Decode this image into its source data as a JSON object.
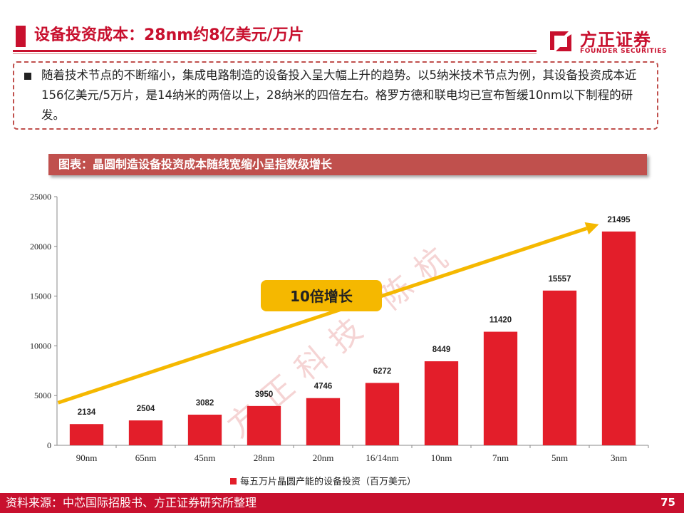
{
  "header": {
    "title": "设备投资成本：28nm约8亿美元/万片",
    "logo_cn": "方正证券",
    "logo_en": "FOUNDER SECURITIES"
  },
  "note": {
    "text": "随着技术节点的不断缩小，集成电路制造的设备投入呈大幅上升的趋势。以5纳米技术节点为例，其设备投资成本近156亿美元/5万片，是14纳米的两倍以上，28纳米的四倍左右。格罗方德和联电均已宣布暂缓10nm以下制程的研发。"
  },
  "chart_caption": "图表：晶圆制造设备投资成本随线宽缩小呈指数级增长",
  "chart_data": {
    "type": "bar",
    "categories": [
      "90nm",
      "65nm",
      "45nm",
      "28nm",
      "20nm",
      "16/14nm",
      "10nm",
      "7nm",
      "5nm",
      "3nm"
    ],
    "series": [
      {
        "name": "每五万片晶圆产能的设备投资（百万美元）",
        "values": [
          2134,
          2504,
          3082,
          3950,
          4746,
          6272,
          8449,
          11420,
          15557,
          21495
        ],
        "color": "#e31e2a"
      }
    ],
    "ylim": [
      0,
      25000
    ],
    "yticks": [
      0,
      5000,
      10000,
      15000,
      20000,
      25000
    ],
    "ytick_labels": [
      "0",
      "5000",
      "10000",
      "15000",
      "20000",
      "25000"
    ],
    "legend_position": "bottom",
    "annotation": {
      "text": "10倍增长",
      "arrow_from_category": "90nm",
      "arrow_to_category": "3nm",
      "arrow_color": "#f5b800",
      "label_background": "#f5b800"
    },
    "watermark": "方正科技 陈杭"
  },
  "footer": {
    "source": "资料来源：中芯国际招股书、方正证券研究所整理",
    "page_number": "75"
  },
  "colors": {
    "brand_red": "#c8102e",
    "bar_red": "#e31e2a",
    "caption_bar": "#c0504d",
    "arrow_yellow": "#f5b800"
  }
}
